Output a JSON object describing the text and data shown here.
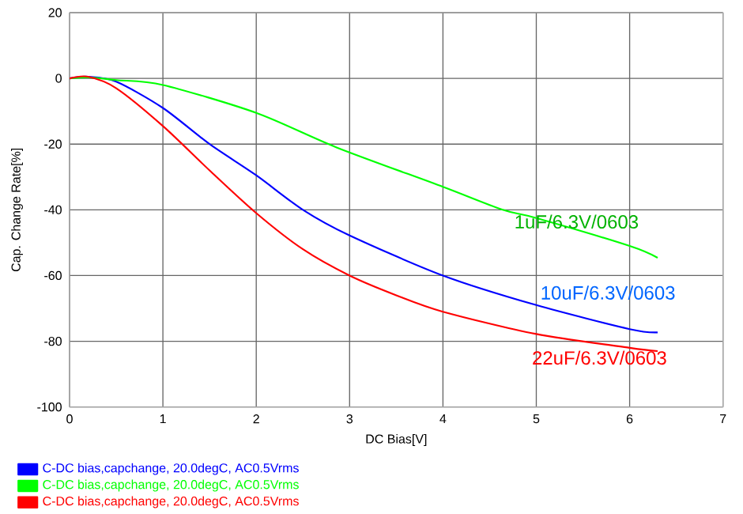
{
  "chart_data": {
    "type": "line",
    "xlabel": "DC Bias[V]",
    "ylabel": "Cap. Change Rate[%]",
    "xlim": [
      0,
      7
    ],
    "ylim": [
      -100,
      20
    ],
    "xticks": [
      0,
      1,
      2,
      3,
      4,
      5,
      6,
      7
    ],
    "yticks": [
      -100,
      -80,
      -60,
      -40,
      -20,
      0,
      20
    ],
    "grid": true,
    "legend": "bottom",
    "marker": "none",
    "line_style": "solid",
    "series": [
      {
        "name": "C-DC bias,capchange, 20.0degC, AC0.5Vrms",
        "color": "#0000ff",
        "x": [
          0,
          0.2,
          0.5,
          1,
          1.5,
          2,
          2.5,
          3,
          4,
          5,
          6,
          6.3
        ],
        "values": [
          0,
          0.5,
          -1,
          -9,
          -20,
          -29.5,
          -40,
          -47.8,
          -60,
          -69,
          -76.3,
          -77.3
        ]
      },
      {
        "name": "C-DC bias,capchange, 20.0degC, AC0.5Vrms",
        "color": "#00ff00",
        "x": [
          0,
          0.2,
          0.5,
          1,
          2,
          2.86,
          4,
          4.64,
          5,
          6,
          6.3
        ],
        "values": [
          0,
          0.3,
          -0.5,
          -2,
          -10.5,
          -21,
          -33,
          -40,
          -42.5,
          -51,
          -54.6
        ]
      },
      {
        "name": "C-DC bias,capchange, 20.0degC, AC0.5Vrms",
        "color": "#ff0000",
        "x": [
          0,
          0.2,
          0.5,
          1,
          1.5,
          2,
          2.5,
          3,
          3.5,
          4,
          5,
          6,
          6.3
        ],
        "values": [
          0,
          0.5,
          -3,
          -14.5,
          -28,
          -41,
          -52,
          -60,
          -66,
          -71,
          -77.8,
          -82,
          -83
        ]
      }
    ],
    "annotations": [
      "1uF/6.3V/0603",
      "10uF/6.3V/0603",
      "22uF/6.3V/0603"
    ]
  }
}
